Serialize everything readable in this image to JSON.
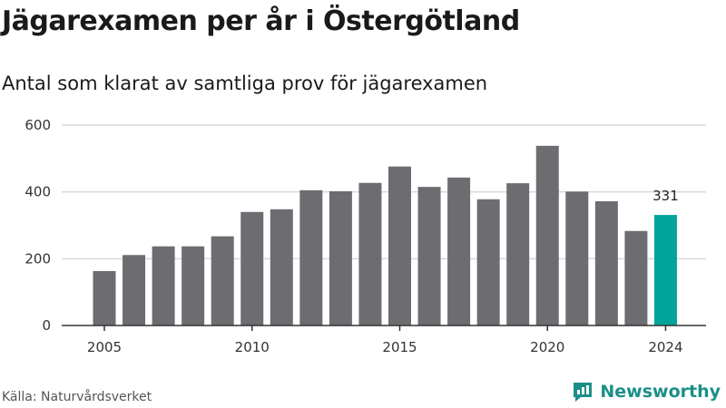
{
  "title": "Jägarexamen per år i Östergötland",
  "subtitle": "Antal som klarat av samtliga prov för jägarexamen",
  "source": "Källa: Naturvårdsverket",
  "brand": "Newsworthy",
  "colors": {
    "bar": "#6d6c71",
    "highlight": "#00a49a",
    "grid": "#d9d9d9",
    "axis": "#333333",
    "brand": "#1b8f87"
  },
  "chart_data": {
    "type": "bar",
    "title": "Jägarexamen per år i Östergötland",
    "subtitle": "Antal som klarat av samtliga prov för jägarexamen",
    "xlabel": "",
    "ylabel": "",
    "categories": [
      2005,
      2006,
      2007,
      2008,
      2009,
      2010,
      2011,
      2012,
      2013,
      2014,
      2015,
      2016,
      2017,
      2018,
      2019,
      2020,
      2021,
      2022,
      2023,
      2024
    ],
    "values": [
      163,
      211,
      237,
      237,
      267,
      340,
      348,
      405,
      402,
      427,
      476,
      415,
      443,
      378,
      426,
      538,
      401,
      372,
      283,
      331
    ],
    "highlight_index": 19,
    "highlight_label": "331",
    "ylim": [
      0,
      600
    ],
    "yticks": [
      0,
      200,
      400,
      600
    ],
    "xticks": [
      2005,
      2010,
      2015,
      2020,
      2024
    ],
    "grid": true,
    "legend": "none"
  }
}
